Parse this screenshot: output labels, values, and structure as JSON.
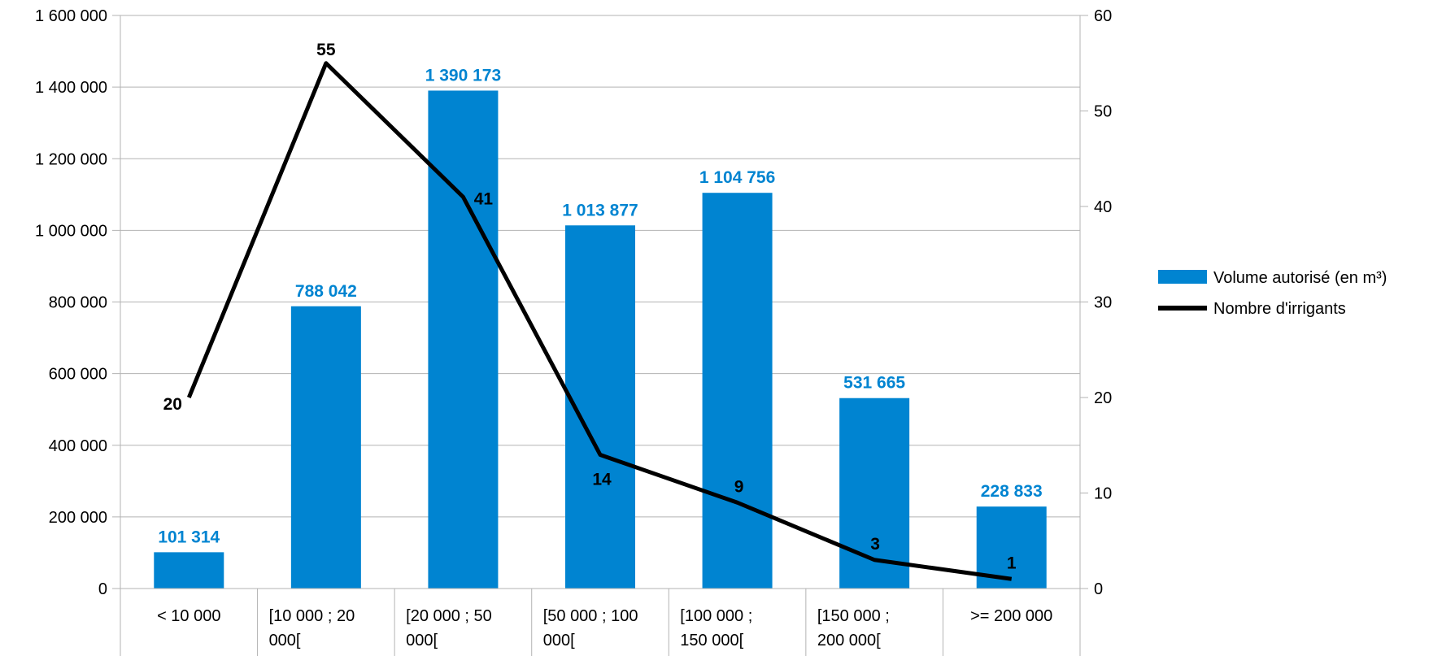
{
  "colors": {
    "bar": "#0084d1",
    "line": "#000000",
    "grid": "#b3b3b3"
  },
  "chart_data": {
    "type": "bar",
    "categories": [
      [
        "< 10 000"
      ],
      [
        "[10 000 ; 20",
        "000["
      ],
      [
        "[20 000 ; 50",
        "000["
      ],
      [
        "[50 000 ; 100",
        "000["
      ],
      [
        "[100 000 ;",
        "150 000["
      ],
      [
        "[150 000 ;",
        "200 000["
      ],
      [
        ">= 200 000"
      ]
    ],
    "series": [
      {
        "name": "Volume autorisé (en m³)",
        "type": "bar",
        "axis": "left",
        "values": [
          101314,
          788042,
          1390173,
          1013877,
          1104756,
          531665,
          228833
        ],
        "labels": [
          "101 314",
          "788 042",
          "1 390 173",
          "1 013 877",
          "1 104 756",
          "531 665",
          "228 833"
        ]
      },
      {
        "name": "Nombre d'irrigants",
        "type": "line",
        "axis": "right",
        "values": [
          20,
          55,
          41,
          14,
          9,
          3,
          1
        ],
        "labels": [
          "20",
          "55",
          "41",
          "14",
          "9",
          "3",
          "1"
        ]
      }
    ],
    "y_left": {
      "range": [
        0,
        1600000
      ],
      "ticks": [
        0,
        200000,
        400000,
        600000,
        800000,
        1000000,
        1200000,
        1400000,
        1600000
      ],
      "tick_labels": [
        "0",
        "200 000",
        "400 000",
        "600 000",
        "800 000",
        "1 000 000",
        "1 200 000",
        "1 400 000",
        "1 600 000"
      ]
    },
    "y_right": {
      "range": [
        0,
        60
      ],
      "ticks": [
        0,
        10,
        20,
        30,
        40,
        50,
        60
      ],
      "tick_labels": [
        "0",
        "10",
        "20",
        "30",
        "40",
        "50",
        "60"
      ]
    },
    "grid": true,
    "legend": "right"
  }
}
